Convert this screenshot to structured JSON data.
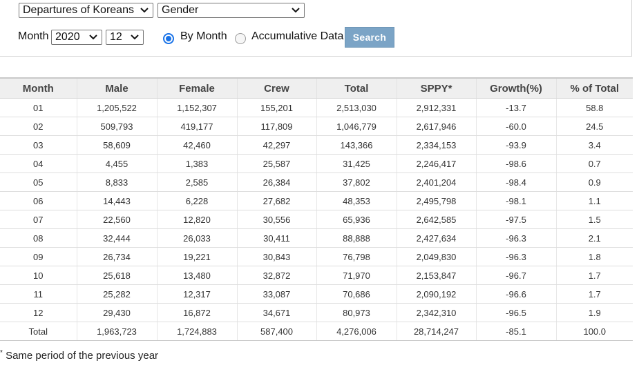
{
  "filters": {
    "category_select": "Departures of Koreans",
    "breakdown_select": "Gender",
    "month_label": "Month",
    "year_select": "2020",
    "month_select": "12",
    "radio_by_month": "By Month",
    "radio_accumulative": "Accumulative Data",
    "search_button": "Search"
  },
  "table": {
    "headers": [
      "Month",
      "Male",
      "Female",
      "Crew",
      "Total",
      "SPPY*",
      "Growth(%)",
      "% of Total"
    ],
    "rows": [
      [
        "01",
        "1,205,522",
        "1,152,307",
        "155,201",
        "2,513,030",
        "2,912,331",
        "-13.7",
        "58.8"
      ],
      [
        "02",
        "509,793",
        "419,177",
        "117,809",
        "1,046,779",
        "2,617,946",
        "-60.0",
        "24.5"
      ],
      [
        "03",
        "58,609",
        "42,460",
        "42,297",
        "143,366",
        "2,334,153",
        "-93.9",
        "3.4"
      ],
      [
        "04",
        "4,455",
        "1,383",
        "25,587",
        "31,425",
        "2,246,417",
        "-98.6",
        "0.7"
      ],
      [
        "05",
        "8,833",
        "2,585",
        "26,384",
        "37,802",
        "2,401,204",
        "-98.4",
        "0.9"
      ],
      [
        "06",
        "14,443",
        "6,228",
        "27,682",
        "48,353",
        "2,495,798",
        "-98.1",
        "1.1"
      ],
      [
        "07",
        "22,560",
        "12,820",
        "30,556",
        "65,936",
        "2,642,585",
        "-97.5",
        "1.5"
      ],
      [
        "08",
        "32,444",
        "26,033",
        "30,411",
        "88,888",
        "2,427,634",
        "-96.3",
        "2.1"
      ],
      [
        "09",
        "26,734",
        "19,221",
        "30,843",
        "76,798",
        "2,049,830",
        "-96.3",
        "1.8"
      ],
      [
        "10",
        "25,618",
        "13,480",
        "32,872",
        "71,970",
        "2,153,847",
        "-96.7",
        "1.7"
      ],
      [
        "11",
        "25,282",
        "12,317",
        "33,087",
        "70,686",
        "2,090,192",
        "-96.6",
        "1.7"
      ],
      [
        "12",
        "29,430",
        "16,872",
        "34,671",
        "80,973",
        "2,342,310",
        "-96.5",
        "1.9"
      ],
      [
        "Total",
        "1,963,723",
        "1,724,883",
        "587,400",
        "4,276,006",
        "28,714,247",
        "-85.1",
        "100.0"
      ]
    ]
  },
  "footnote": {
    "marker": "*",
    "text": " Same period of the previous year"
  },
  "icons": {
    "select_arrow": "chevron-down-icon"
  },
  "colors": {
    "radio_selected": "#1a73e8",
    "search_button_bg": "#7ba4c6",
    "header_bg": "#efefef"
  }
}
